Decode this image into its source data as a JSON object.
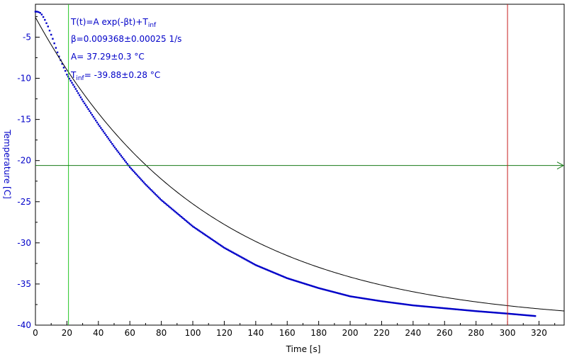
{
  "chart_data": {
    "type": "scatter",
    "xlabel": "Time [s]",
    "ylabel": "Temperature [C]",
    "xlim": [
      0,
      336
    ],
    "ylim": [
      -40,
      -1
    ],
    "x_ticks": [
      0,
      20,
      40,
      60,
      80,
      100,
      120,
      140,
      160,
      180,
      200,
      220,
      240,
      260,
      280,
      300,
      320
    ],
    "y_ticks": [
      -5,
      -10,
      -15,
      -20,
      -25,
      -30,
      -35,
      -40
    ],
    "grid": false,
    "annotations": {
      "formula_main": "T(t)=A exp(-βt)+T",
      "formula_sub": "inf",
      "beta": "β=0.009368±0.00025 1/s",
      "amplitude": "A= 37.29±0.3 °C",
      "tinf_prefix": "T",
      "tinf_sub": "inf",
      "tinf_value": "= -39.88±0.28 °C"
    },
    "fit": {
      "A": 37.29,
      "beta": 0.009368,
      "T_inf": -39.88
    },
    "cursors": {
      "vertical_green_x": 21,
      "horizontal_green_y": -20.6,
      "vertical_red_x": 300
    },
    "series": [
      {
        "kind": "points",
        "color": "#0000c8",
        "points": [
          [
            0,
            -1.9
          ],
          [
            1,
            -1.9
          ],
          [
            2,
            -1.95
          ],
          [
            3,
            -2.05
          ],
          [
            4,
            -2.25
          ],
          [
            5,
            -2.55
          ],
          [
            6,
            -2.9
          ],
          [
            7,
            -3.3
          ],
          [
            8,
            -3.7
          ],
          [
            9,
            -4.2
          ],
          [
            10,
            -4.7
          ],
          [
            11,
            -5.2
          ],
          [
            12,
            -5.75
          ],
          [
            13,
            -6.3
          ],
          [
            14,
            -6.85
          ],
          [
            15,
            -7.35
          ],
          [
            16,
            -7.8
          ],
          [
            17,
            -8.25
          ],
          [
            18,
            -8.7
          ],
          [
            19,
            -9.1
          ],
          [
            20,
            -9.55
          ],
          [
            25,
            -11.1
          ],
          [
            30,
            -12.7
          ],
          [
            40,
            -15.6
          ],
          [
            50,
            -18.3
          ],
          [
            60,
            -20.8
          ],
          [
            70,
            -22.9
          ],
          [
            80,
            -24.8
          ],
          [
            100,
            -28.0
          ],
          [
            120,
            -30.6
          ],
          [
            140,
            -32.7
          ],
          [
            160,
            -34.3
          ],
          [
            180,
            -35.5
          ],
          [
            200,
            -36.5
          ],
          [
            220,
            -37.1
          ],
          [
            240,
            -37.6
          ],
          [
            260,
            -37.95
          ],
          [
            280,
            -38.3
          ],
          [
            300,
            -38.6
          ],
          [
            318,
            -38.9
          ]
        ]
      },
      {
        "kind": "fit-line",
        "color": "#000000",
        "x_range": [
          0,
          336
        ]
      }
    ]
  }
}
